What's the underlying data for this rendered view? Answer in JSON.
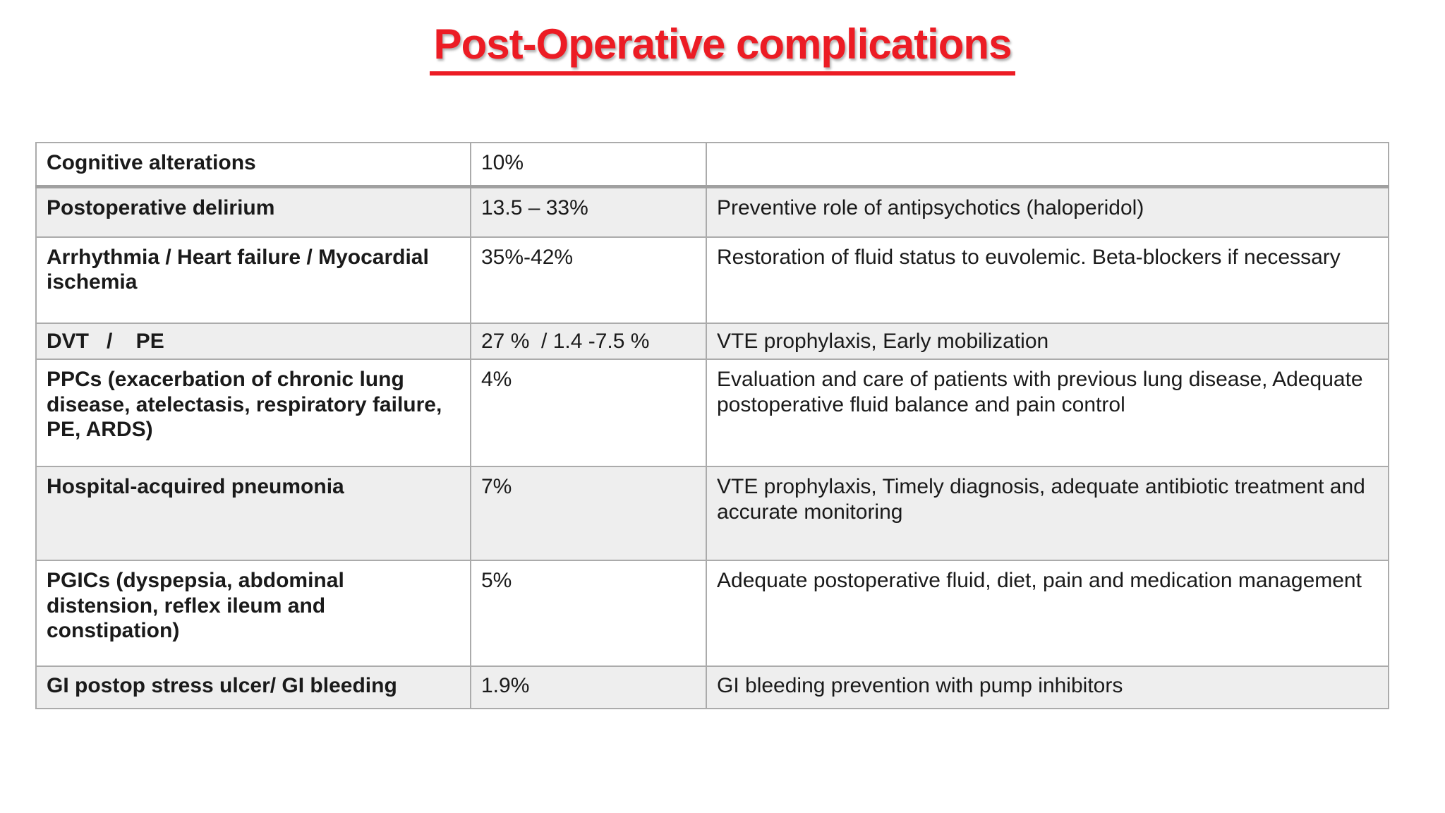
{
  "title": "Post-Operative complications",
  "colors": {
    "title_red": "#ec1c24",
    "row_alt_bg": "#eeeeee",
    "table_border": "#ababab",
    "text": "#1a1a1a"
  },
  "table": {
    "rows": [
      {
        "complication": "Cognitive alterations",
        "incidence": "10%",
        "management": ""
      },
      {
        "complication": "Postoperative delirium",
        "incidence": "13.5 – 33%",
        "management": "Preventive role of antipsychotics (haloperidol)"
      },
      {
        "complication": "Arrhythmia / Heart failure / Myocardial ischemia",
        "incidence": "35%-42%",
        "management": "Restoration of fluid status to euvolemic. Beta-blockers if necessary"
      },
      {
        "complication": "DVT   /    PE",
        "incidence": "27 %  / 1.4 -7.5 %",
        "management": "VTE prophylaxis, Early mobilization"
      },
      {
        "complication": "PPCs (exacerbation of chronic lung disease, atelectasis, respiratory failure, PE, ARDS)",
        "incidence": "4%",
        "management": "Evaluation and care of patients with previous lung disease, Adequate postoperative fluid balance and pain control"
      },
      {
        "complication": "Hospital-acquired pneumonia",
        "incidence": "7%",
        "management": "VTE prophylaxis, Timely diagnosis, adequate antibiotic treatment and accurate monitoring"
      },
      {
        "complication": "PGICs (dyspepsia, abdominal distension, reflex ileum and constipation)",
        "incidence": "5%",
        "management": "Adequate postoperative fluid, diet, pain and medication management"
      },
      {
        "complication": "GI postop stress ulcer/ GI bleeding",
        "incidence": "1.9%",
        "management": "GI bleeding prevention with pump inhibitors"
      }
    ]
  }
}
